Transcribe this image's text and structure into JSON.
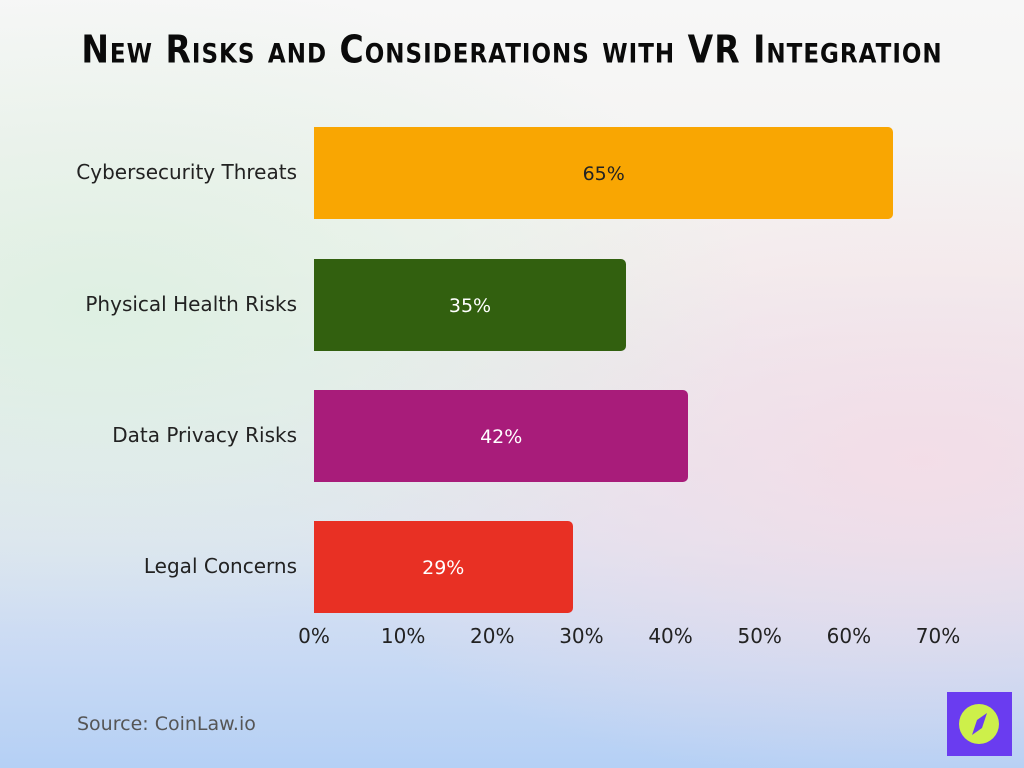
{
  "chart_data": {
    "type": "bar",
    "orientation": "horizontal",
    "title": "New Risks and Considerations with VR Integration",
    "categories": [
      "Cybersecurity Threats",
      "Physical Health Risks",
      "Data Privacy Risks",
      "Legal Concerns"
    ],
    "values": [
      65,
      35,
      42,
      29
    ],
    "data_labels": [
      "65%",
      "35%",
      "42%",
      "29%"
    ],
    "colors": [
      "#f9a602",
      "#32600f",
      "#a81c7a",
      "#e83024"
    ],
    "label_colors": [
      "#222222",
      "#ffffff",
      "#ffffff",
      "#ffffff"
    ],
    "xlim": [
      0,
      70
    ],
    "xticks": [
      0,
      10,
      20,
      30,
      40,
      50,
      60,
      70
    ],
    "xtick_labels": [
      "0%",
      "10%",
      "20%",
      "30%",
      "40%",
      "50%",
      "60%",
      "70%"
    ],
    "grid": false,
    "legend": "none"
  },
  "source": "Source: CoinLaw.io",
  "logo": {
    "icon": "compass-icon",
    "background": "#6a3cf0",
    "accent": "#cdf04a"
  }
}
